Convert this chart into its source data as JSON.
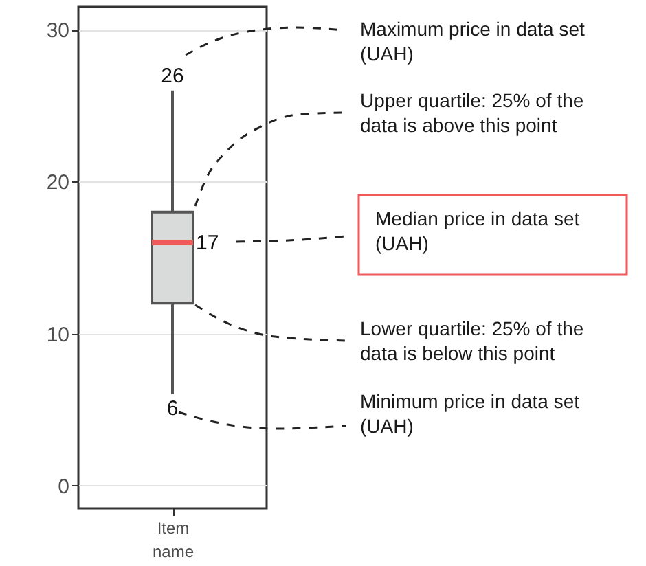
{
  "chart_data": {
    "type": "box",
    "categories": [
      "Item name"
    ],
    "series": [
      {
        "color": "#d9dbdb",
        "boxes": [
          {
            "low": 6,
            "q1": 12,
            "median": 16,
            "q3": 18,
            "high": 26
          }
        ]
      }
    ],
    "ylim": [
      -1.5,
      31.5
    ],
    "yticks": [
      0,
      10,
      20,
      30
    ],
    "grid": "y",
    "annotations": [
      {
        "text": "26",
        "x": "Item name",
        "y": 26
      },
      {
        "text": "17",
        "x": "Item name",
        "y": 16
      },
      {
        "text": "6",
        "x": "Item name",
        "y": 6
      },
      "Maximum price in data set (UAH)",
      "Upper quartile: 25% of the data is above this point",
      "Median price in data set (UAH)",
      "Lower quartile: 25% of the data is below this point",
      "Minimum price in data set (UAH)"
    ]
  }
}
